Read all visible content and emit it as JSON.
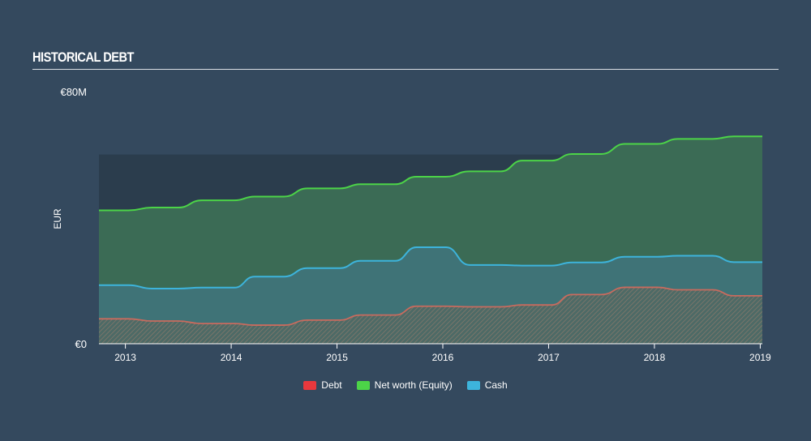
{
  "header": {
    "title": "HISTORICAL DEBT"
  },
  "chart_data": {
    "type": "area",
    "title": "HISTORICAL DEBT",
    "ylabel": "EUR",
    "xlabel": "",
    "ylim": [
      0,
      80
    ],
    "y_tick_labels": {
      "top": "€80M",
      "bottom": "€0"
    },
    "x_tick_labels": [
      "2013",
      "2014",
      "2015",
      "2016",
      "2017",
      "2018",
      "2019"
    ],
    "x_ticks": [
      2013,
      2014,
      2015,
      2016,
      2017,
      2018,
      2019
    ],
    "xlim": [
      2012.75,
      2019.02
    ],
    "shaded_band_ylim": [
      40,
      60
    ],
    "colors": {
      "debt": "#e8383d",
      "equity": "#4cd448",
      "cash": "#3db4dc"
    },
    "series": [
      {
        "name": "Net worth (Equity)",
        "key": "equity",
        "x": [
          2012.75,
          2013.03,
          2013.25,
          2013.5,
          2013.72,
          2014.03,
          2014.22,
          2014.5,
          2014.72,
          2015.03,
          2015.22,
          2015.55,
          2015.75,
          2016.03,
          2016.25,
          2016.55,
          2016.75,
          2017.03,
          2017.22,
          2017.5,
          2017.72,
          2018.03,
          2018.22,
          2018.55,
          2018.75,
          2019.02
        ],
        "values": [
          42.3,
          42.3,
          43.2,
          43.2,
          45.5,
          45.5,
          46.7,
          46.7,
          49.3,
          49.3,
          50.6,
          50.6,
          53.0,
          53.0,
          54.7,
          54.7,
          58.1,
          58.1,
          60.2,
          60.2,
          63.4,
          63.4,
          65.0,
          65.0,
          65.8,
          65.8
        ]
      },
      {
        "name": "Cash",
        "key": "cash",
        "x": [
          2012.75,
          2013.03,
          2013.25,
          2013.5,
          2013.72,
          2014.03,
          2014.22,
          2014.5,
          2014.72,
          2015.03,
          2015.22,
          2015.55,
          2015.75,
          2016.03,
          2016.25,
          2016.55,
          2016.75,
          2017.03,
          2017.22,
          2017.5,
          2017.72,
          2018.03,
          2018.22,
          2018.55,
          2018.75,
          2019.02
        ],
        "values": [
          18.6,
          18.6,
          17.5,
          17.5,
          17.8,
          17.8,
          21.3,
          21.3,
          24.0,
          24.0,
          26.3,
          26.3,
          30.6,
          30.6,
          25.0,
          25.0,
          24.8,
          24.8,
          25.8,
          25.8,
          27.6,
          27.6,
          27.9,
          27.9,
          25.9,
          25.9
        ]
      },
      {
        "name": "Debt",
        "key": "debt",
        "x": [
          2012.75,
          2013.03,
          2013.25,
          2013.5,
          2013.72,
          2014.03,
          2014.22,
          2014.5,
          2014.72,
          2015.03,
          2015.22,
          2015.55,
          2015.75,
          2016.03,
          2016.25,
          2016.55,
          2016.75,
          2017.03,
          2017.22,
          2017.5,
          2017.72,
          2018.03,
          2018.22,
          2018.55,
          2018.75,
          2019.02
        ],
        "values": [
          7.9,
          7.9,
          7.2,
          7.2,
          6.4,
          6.4,
          5.9,
          5.9,
          7.5,
          7.5,
          9.1,
          9.1,
          11.9,
          11.9,
          11.7,
          11.7,
          12.3,
          12.3,
          15.6,
          15.6,
          17.9,
          17.9,
          17.1,
          17.1,
          15.2,
          15.2
        ]
      }
    ],
    "legend": [
      {
        "label": "Debt",
        "key": "debt"
      },
      {
        "label": "Net worth (Equity)",
        "key": "equity"
      },
      {
        "label": "Cash",
        "key": "cash"
      }
    ],
    "legend_position": "bottom"
  }
}
